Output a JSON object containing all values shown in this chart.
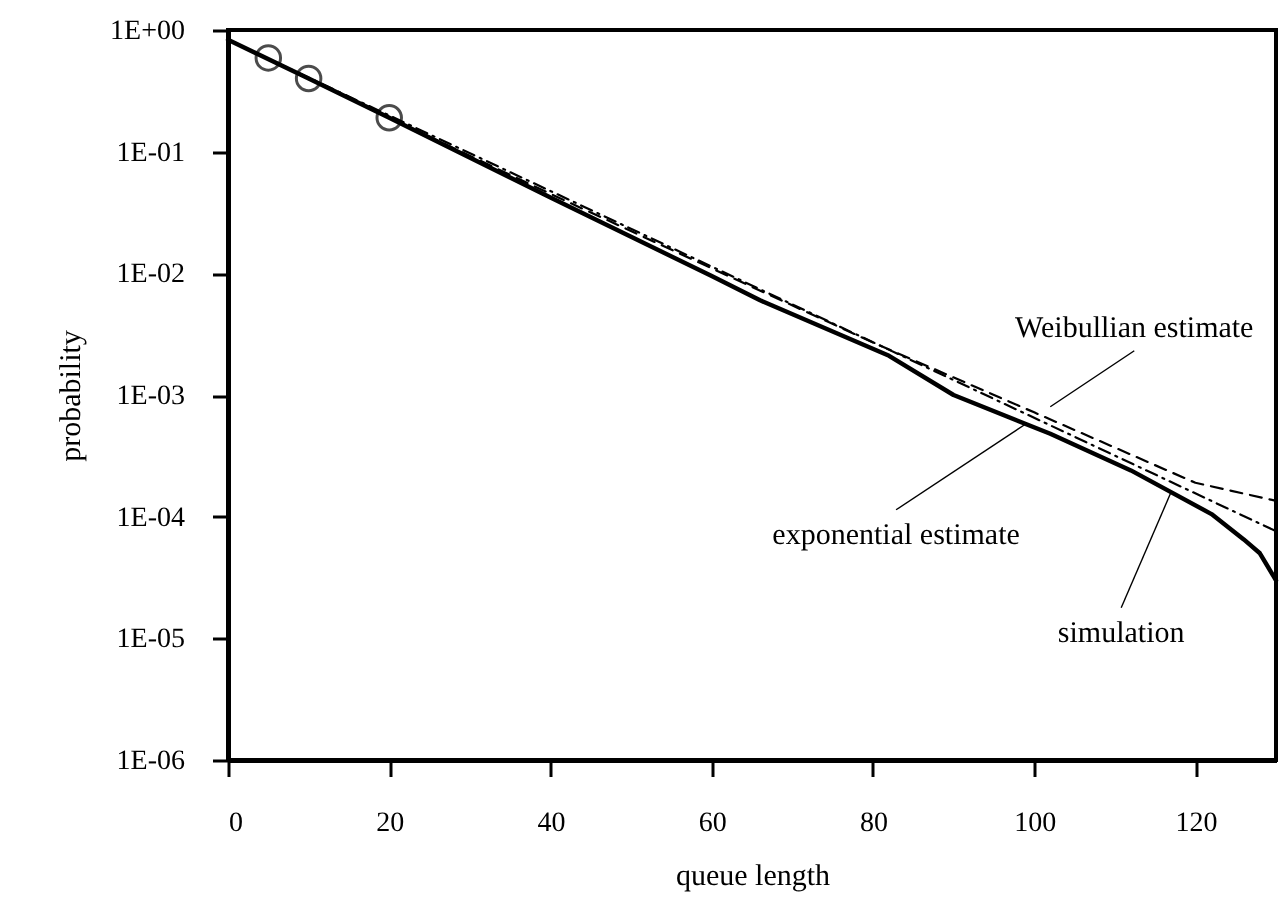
{
  "chart_data": {
    "type": "line",
    "xlabel": "queue length",
    "ylabel": "probability",
    "log": "y",
    "grid": false,
    "xlim": [
      0,
      130
    ],
    "xticks": [
      0,
      20,
      40,
      60,
      80,
      100,
      120
    ],
    "ylim": [
      1e-06,
      1
    ],
    "yticks": [
      {
        "value": 1e-06,
        "label": "1E-06"
      },
      {
        "value": 1e-05,
        "label": "1E-05"
      },
      {
        "value": 0.0001,
        "label": "1E-04"
      },
      {
        "value": 0.001,
        "label": "1E-03"
      },
      {
        "value": 0.01,
        "label": "1E-02"
      },
      {
        "value": 0.1,
        "label": "1E-01"
      },
      {
        "value": 1,
        "label": "1E+00"
      }
    ],
    "series": [
      {
        "line_style": "dashed",
        "color": "#000000",
        "x": [
          0,
          20,
          40,
          60,
          80,
          100,
          120,
          130
        ],
        "values": [
          0.83,
          0.19,
          0.045,
          0.011,
          0.0027,
          0.00072,
          0.00019,
          0.000135
        ]
      },
      {
        "line_style": "dashdot",
        "color": "#000000",
        "x": [
          0,
          130
        ],
        "values": [
          0.83,
          7.6e-05
        ]
      },
      {
        "line_style": "solid",
        "color": "#000000",
        "x": [
          0,
          10,
          20,
          40,
          60,
          66,
          82,
          90,
          102,
          112,
          122,
          126,
          128,
          130
        ],
        "values": [
          0.83,
          0.4,
          0.19,
          0.042,
          0.0095,
          0.006,
          0.0021,
          0.001,
          0.00048,
          0.00024,
          0.000105,
          6.5e-05,
          5e-05,
          3e-05
        ]
      },
      {
        "type": "scatter",
        "marker": "circle",
        "color": "#000000",
        "x": [
          5,
          10,
          20
        ],
        "values": [
          0.59,
          0.4,
          0.19
        ]
      }
    ],
    "annotations": [
      {
        "text": "Weibullian estimate",
        "x": 102,
        "y": 0.0008
      },
      {
        "text": "exponential estimate",
        "x": 99,
        "y": 0.00058
      },
      {
        "text": "simulation",
        "x": 117,
        "y": 0.00016
      }
    ]
  }
}
